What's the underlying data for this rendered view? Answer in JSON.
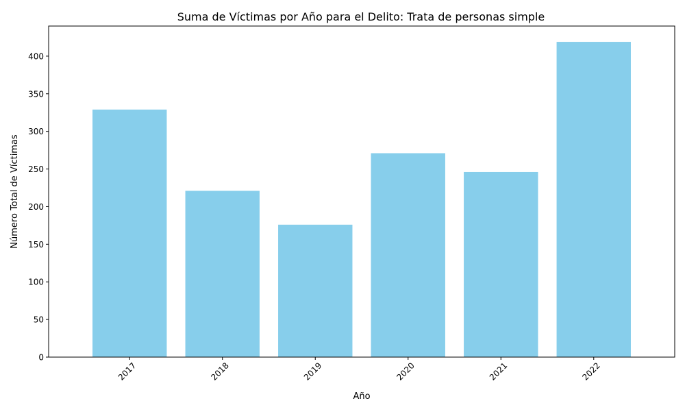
{
  "chart_data": {
    "type": "bar",
    "title": "Suma de Víctimas por Año para el Delito: Trata de personas simple",
    "xlabel": "Año",
    "ylabel": "Número Total de Víctimas",
    "categories": [
      "2017",
      "2018",
      "2019",
      "2020",
      "2021",
      "2022"
    ],
    "values": [
      329,
      221,
      176,
      271,
      246,
      419
    ],
    "ylim": [
      0,
      440
    ],
    "yticks": [
      0,
      50,
      100,
      150,
      200,
      250,
      300,
      350,
      400
    ],
    "x_tick_rotation": 45,
    "grid": false,
    "legend": "none",
    "bar_color": "#87CEEB",
    "axis_color": "#000000"
  }
}
